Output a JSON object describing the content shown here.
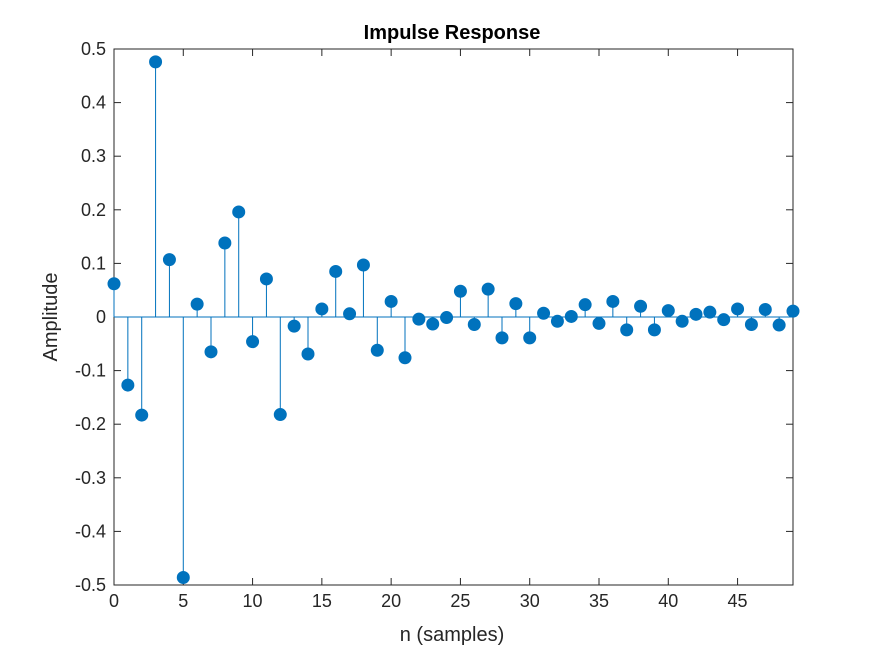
{
  "chart_data": {
    "type": "stem",
    "title": "Impulse Response",
    "xlabel": "n (samples)",
    "ylabel": "Amplitude",
    "xlim": [
      0,
      49
    ],
    "ylim": [
      -0.5,
      0.5
    ],
    "xticks": [
      0,
      5,
      10,
      15,
      20,
      25,
      30,
      35,
      40,
      45
    ],
    "yticks": [
      -0.5,
      -0.4,
      -0.3,
      -0.2,
      -0.1,
      0,
      0.1,
      0.2,
      0.3,
      0.4,
      0.5
    ],
    "xtick_labels": [
      "0",
      "5",
      "10",
      "15",
      "20",
      "25",
      "30",
      "35",
      "40",
      "45"
    ],
    "ytick_labels": [
      "-0.5",
      "-0.4",
      "-0.3",
      "-0.2",
      "-0.1",
      "0",
      "0.1",
      "0.2",
      "0.3",
      "0.4",
      "0.5"
    ],
    "grid": false,
    "color": "#0072BD",
    "x": [
      0,
      1,
      2,
      3,
      4,
      5,
      6,
      7,
      8,
      9,
      10,
      11,
      12,
      13,
      14,
      15,
      16,
      17,
      18,
      19,
      20,
      21,
      22,
      23,
      24,
      25,
      26,
      27,
      28,
      29,
      30,
      31,
      32,
      33,
      34,
      35,
      36,
      37,
      38,
      39,
      40,
      41,
      42,
      43,
      44,
      45,
      46,
      47,
      48,
      49
    ],
    "values": [
      0.062,
      -0.127,
      -0.183,
      0.476,
      0.107,
      -0.486,
      0.024,
      -0.065,
      0.138,
      0.196,
      -0.046,
      0.071,
      -0.182,
      -0.017,
      -0.069,
      0.015,
      0.085,
      0.006,
      0.097,
      -0.062,
      0.029,
      -0.076,
      -0.004,
      -0.013,
      -0.001,
      0.048,
      -0.014,
      0.052,
      -0.039,
      0.025,
      -0.039,
      0.007,
      -0.008,
      0.001,
      0.023,
      -0.012,
      0.029,
      -0.024,
      0.02,
      -0.024,
      0.012,
      -0.008,
      0.005,
      0.009,
      -0.005,
      0.015,
      -0.014,
      0.014,
      -0.015,
      0.011
    ]
  }
}
